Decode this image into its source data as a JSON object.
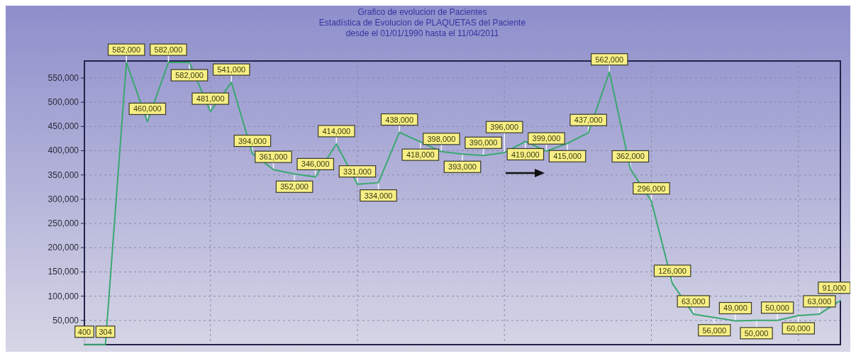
{
  "chart_data": {
    "type": "line",
    "title": "Grafico de evolucion de Pacientes",
    "subtitle": "Estadística de Evolucion de PLAQUETAS del Paciente\ndesde el 01/01/1990 hasta el 11/04/2011",
    "categories": [
      null,
      null,
      null,
      null,
      null,
      null,
      null,
      null,
      null,
      null,
      null,
      null,
      null,
      null,
      null,
      null,
      null,
      null,
      null,
      null,
      null,
      null,
      null,
      null,
      null,
      null,
      null,
      null,
      null,
      null,
      null,
      null,
      null,
      null,
      null,
      null,
      null
    ],
    "series": [
      {
        "color": "#3aa870",
        "values": [
          400,
          304,
          582000,
          460000,
          582000,
          582000,
          481000,
          541000,
          394000,
          361000,
          352000,
          346000,
          414000,
          331000,
          334000,
          438000,
          418000,
          398000,
          393000,
          390000,
          396000,
          419000,
          399000,
          415000,
          437000,
          562000,
          362000,
          296000,
          126000,
          63000,
          56000,
          49000,
          50000,
          50000,
          60000,
          63000,
          91000
        ],
        "value_labels": [
          "400",
          "304",
          "582,000",
          "460,000",
          "582,000",
          "582,000",
          "481,000",
          "541,000",
          "394,000",
          "361,000",
          "352,000",
          "346,000",
          "414,000",
          "331,000",
          "334,000",
          "438,000",
          "418,000",
          "398,000",
          "393,000",
          "390,000",
          "396,000",
          "419,000",
          "399,000",
          "415,000",
          "437,000",
          "562,000",
          "362,000",
          "296,000",
          "126,000",
          "63,000",
          "56,000",
          "49,000",
          "50,000",
          "50,000",
          "60,000",
          "63,000",
          "91,000"
        ]
      }
    ],
    "ylim": [
      0,
      585000
    ],
    "yticks": [
      {
        "value": 50000,
        "label": "50,000"
      },
      {
        "value": 100000,
        "label": "100,000"
      },
      {
        "value": 150000,
        "label": "150,000"
      },
      {
        "value": 200000,
        "label": "200,000"
      },
      {
        "value": 250000,
        "label": "250,000"
      },
      {
        "value": 300000,
        "label": "300,000"
      },
      {
        "value": 350000,
        "label": "350,000"
      },
      {
        "value": 400000,
        "label": "400,000"
      },
      {
        "value": 450000,
        "label": "450,000"
      },
      {
        "value": 500000,
        "label": "500,000"
      },
      {
        "value": 550000,
        "label": "550,000"
      }
    ],
    "grid": true,
    "marker": "none",
    "line_style": "solid",
    "tick_labels": "y"
  }
}
